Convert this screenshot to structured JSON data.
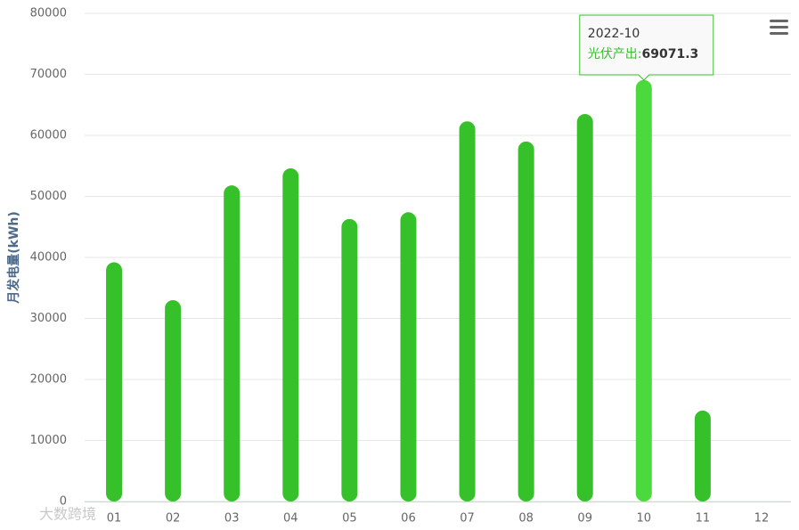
{
  "chart_data": {
    "type": "bar",
    "y_axis_label": "月发电量(kWh)",
    "categories": [
      "01",
      "02",
      "03",
      "04",
      "05",
      "06",
      "07",
      "08",
      "09",
      "10",
      "11",
      "12"
    ],
    "series": [
      {
        "name": "光伏产出",
        "color": "#36c12a",
        "values": [
          39200,
          33000,
          51800,
          54600,
          46300,
          47400,
          62300,
          59000,
          63500,
          69071.3,
          14900,
          null
        ]
      }
    ],
    "ylim": [
      0,
      80000
    ],
    "yticks": [
      0,
      10000,
      20000,
      30000,
      40000,
      50000,
      60000,
      70000,
      80000
    ],
    "grid": true,
    "tooltip": {
      "index": 9,
      "header": "2022-10",
      "label": "光伏产出:",
      "highlight_color": "#4cd93e"
    },
    "watermark": "大数跨境"
  }
}
